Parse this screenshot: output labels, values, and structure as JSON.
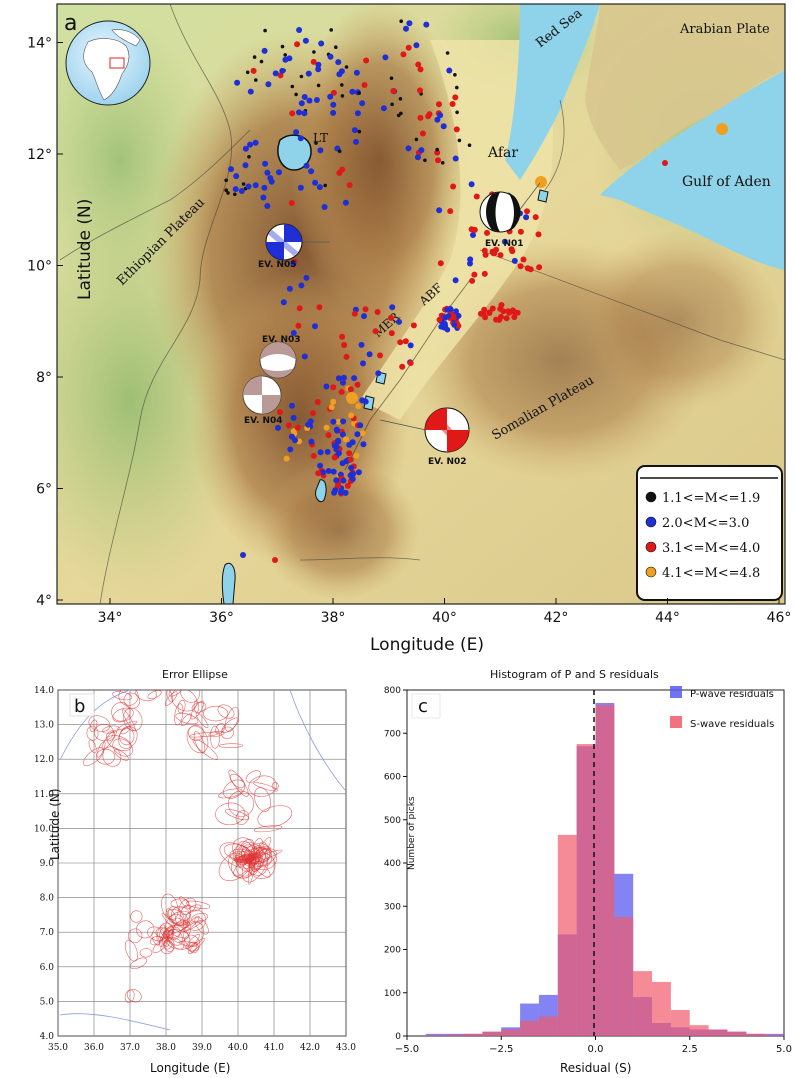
{
  "panel_a": {
    "label": "a",
    "x_ticks": [
      "34°",
      "36°",
      "38°",
      "40°",
      "42°",
      "44°",
      "46°"
    ],
    "y_ticks": [
      "4°",
      "6°",
      "8°",
      "10°",
      "12°",
      "14°"
    ],
    "xlabel": "Longitude (E)",
    "ylabel": "Latitude (N)",
    "place_labels": {
      "red_sea": "Red Sea",
      "arabian_plate": "Arabian Plate",
      "afar": "Afar",
      "gulf_of_aden": "Gulf of Aden",
      "lt": "LT",
      "ethiopian_plateau": "Ethiopian Plateau",
      "somalian_plateau": "Somalian Plateau",
      "mer": "MER",
      "abf": "ABF"
    },
    "events": {
      "n01": "EV. N01",
      "n02": "EV. N02",
      "n03": "EV. N03",
      "n04": "EV. N04",
      "n05": "EV. N05"
    },
    "legend": [
      {
        "label": "1.1<=M<=1.9",
        "color": "#111111"
      },
      {
        "label": "2.0<M<=3.0",
        "color": "#1f2fd6"
      },
      {
        "label": "3.1<=M<=4.0",
        "color": "#e01818"
      },
      {
        "label": "4.1<=M<=4.8",
        "color": "#f0a020"
      }
    ],
    "colors": {
      "water": "#8fd3ea",
      "highland": "#9b6a3c",
      "lowland": "#e8dc9a",
      "green": "#a8c878"
    }
  },
  "panel_b": {
    "label": "b",
    "title": "Error Ellipse",
    "xlabel": "Longitude (E)",
    "ylabel": "Latitude (N)",
    "x_ticks": [
      "35.0",
      "36.0",
      "37.0",
      "38.0",
      "39.0",
      "40.0",
      "41.0",
      "42.0",
      "43.0"
    ],
    "y_ticks": [
      "4.0",
      "5.0",
      "6.0",
      "7.0",
      "8.0",
      "9.0",
      "10.0",
      "11.0",
      "12.0",
      "13.0",
      "14.0"
    ]
  },
  "panel_c": {
    "label": "c",
    "title": "Histogram of P and S residuals",
    "xlabel": "Residual (S)",
    "ylabel": "Number of picks",
    "legend_p": "P-wave  residuals",
    "legend_s": "S-wave  residuals",
    "x_ticks": [
      "−5.0",
      "−2.5",
      "0.0",
      "2.5",
      "5.0"
    ],
    "y_ticks": [
      "0",
      "100",
      "200",
      "300",
      "400",
      "500",
      "600",
      "700",
      "800"
    ],
    "colors": {
      "p": "#5a5af0",
      "s": "#f05a6a",
      "overlap": "#b03070"
    }
  },
  "chart_data": {
    "type": "bar",
    "title": "Histogram of P and S residuals",
    "xlabel": "Residual (S)",
    "ylabel": "Number of picks",
    "xlim": [
      -5.0,
      5.0
    ],
    "ylim": [
      0,
      800
    ],
    "bin_edges": [
      -4.5,
      -4.0,
      -3.5,
      -3.0,
      -2.5,
      -2.0,
      -1.5,
      -1.0,
      -0.5,
      0.0,
      0.5,
      1.0,
      1.5,
      2.0,
      2.5,
      3.0,
      3.5,
      4.0,
      4.5,
      5.0
    ],
    "series": [
      {
        "name": "P-wave  residuals",
        "values": [
          5,
          5,
          5,
          10,
          20,
          75,
          95,
          235,
          670,
          770,
          375,
          90,
          30,
          20,
          15,
          15,
          10,
          5,
          5
        ]
      },
      {
        "name": "S-wave  residuals",
        "values": [
          2,
          3,
          5,
          10,
          15,
          35,
          45,
          465,
          675,
          765,
          275,
          150,
          125,
          60,
          25,
          15,
          10,
          5,
          2
        ]
      }
    ]
  }
}
